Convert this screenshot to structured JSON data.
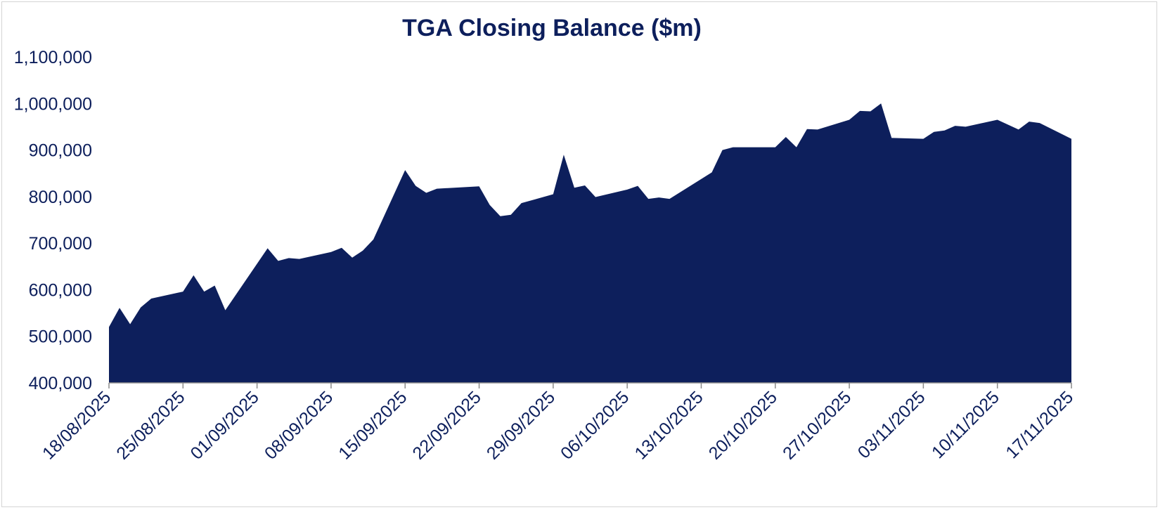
{
  "chart_data": {
    "type": "area",
    "title": "TGA Closing Balance ($m)",
    "xlabel": "",
    "ylabel": "",
    "ylim": [
      400000,
      1100000
    ],
    "yticks": [
      400000,
      500000,
      600000,
      700000,
      800000,
      900000,
      1000000,
      1100000
    ],
    "ytick_labels": [
      "400,000",
      "500,000",
      "600,000",
      "700,000",
      "800,000",
      "900,000",
      "1,000,000",
      "1,100,000"
    ],
    "xlim": [
      "2025-08-18",
      "2025-11-17"
    ],
    "xtick_labels": [
      "18/08/2025",
      "25/08/2025",
      "01/09/2025",
      "08/09/2025",
      "15/09/2025",
      "22/09/2025",
      "29/09/2025",
      "06/10/2025",
      "13/10/2025",
      "20/10/2025",
      "27/10/2025",
      "03/11/2025",
      "10/11/2025",
      "17/11/2025"
    ],
    "grid": false,
    "legend": "none",
    "fill_color": "#0d1f5c",
    "series": [
      {
        "x": [
          "2025-08-18",
          "2025-08-19",
          "2025-08-20",
          "2025-08-21",
          "2025-08-22",
          "2025-08-25",
          "2025-08-26",
          "2025-08-27",
          "2025-08-28",
          "2025-08-29",
          "2025-09-02",
          "2025-09-03",
          "2025-09-04",
          "2025-09-05",
          "2025-09-08",
          "2025-09-09",
          "2025-09-10",
          "2025-09-11",
          "2025-09-12",
          "2025-09-15",
          "2025-09-16",
          "2025-09-17",
          "2025-09-18",
          "2025-09-22",
          "2025-09-23",
          "2025-09-24",
          "2025-09-25",
          "2025-09-26",
          "2025-09-29",
          "2025-09-30",
          "2025-10-01",
          "2025-10-02",
          "2025-10-03",
          "2025-10-06",
          "2025-10-07",
          "2025-10-08",
          "2025-10-09",
          "2025-10-10",
          "2025-10-14",
          "2025-10-15",
          "2025-10-16",
          "2025-10-17",
          "2025-10-20",
          "2025-10-21",
          "2025-10-22",
          "2025-10-23",
          "2025-10-24",
          "2025-10-27",
          "2025-10-28",
          "2025-10-29",
          "2025-10-30",
          "2025-10-31",
          "2025-11-03",
          "2025-11-04",
          "2025-11-05",
          "2025-11-06",
          "2025-11-07",
          "2025-11-10",
          "2025-11-12",
          "2025-11-13",
          "2025-11-14",
          "2025-11-17"
        ],
        "values": [
          520000,
          561000,
          526000,
          562000,
          581000,
          596000,
          631000,
          596000,
          609000,
          556000,
          689000,
          662000,
          668000,
          666000,
          681000,
          690000,
          669000,
          684000,
          708000,
          857000,
          823000,
          808000,
          817000,
          822000,
          782000,
          758000,
          761000,
          786000,
          805000,
          890000,
          819000,
          824000,
          799000,
          815000,
          823000,
          795000,
          798000,
          795000,
          852000,
          900000,
          906000,
          906000,
          906000,
          928000,
          906000,
          945000,
          944000,
          965000,
          984000,
          983000,
          1000000,
          926000,
          924000,
          939000,
          942000,
          952000,
          950000,
          965000,
          944000,
          961000,
          958000,
          924000
        ]
      }
    ]
  }
}
